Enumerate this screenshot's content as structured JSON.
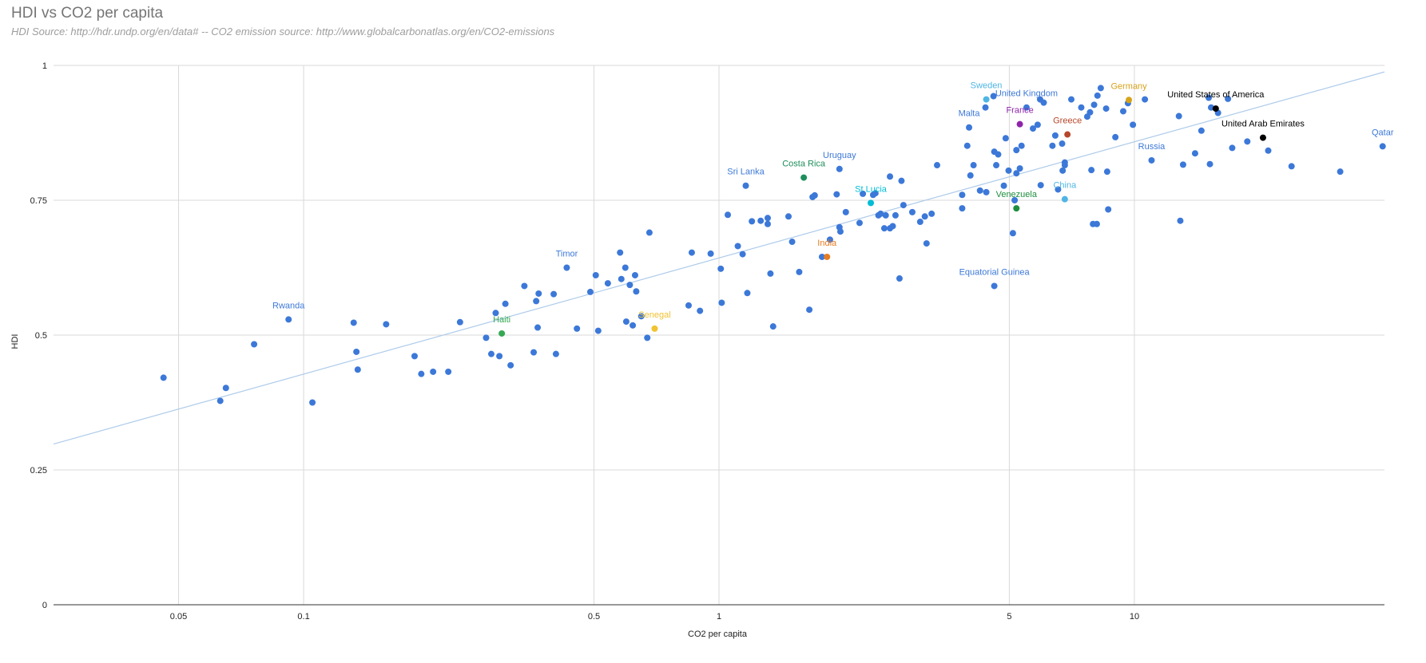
{
  "chart_data": {
    "type": "scatter",
    "title": "HDI vs CO2 per capita",
    "subtitle": "HDI Source: http://hdr.undp.org/en/data# -- CO2 emission source: http://www.globalcarbonatlas.org/en/CO2-emissions",
    "xlabel": "CO2 per capita",
    "ylabel": "HDI",
    "x_scale": "log",
    "xlim": [
      0.025,
      40
    ],
    "ylim": [
      0,
      1
    ],
    "x_ticks": [
      0.05,
      0.1,
      0.5,
      1,
      5,
      10
    ],
    "x_tick_labels": [
      "0.05",
      "0.1",
      "0.5",
      "1",
      "5",
      "10"
    ],
    "y_ticks": [
      0,
      0.25,
      0.5,
      0.75,
      1
    ],
    "y_tick_labels": [
      "0",
      "0.25",
      "0.5",
      "0.75",
      "1"
    ],
    "grid": true,
    "legend": "none",
    "trendline": {
      "color": "#aecbea",
      "from": [
        0.025,
        0.298
      ],
      "to": [
        40,
        0.988
      ]
    },
    "default_color": "#3c78d8",
    "labeled_points": [
      {
        "label": "Rwanda",
        "x": 0.092,
        "y": 0.529,
        "color": "#3c78d8",
        "label_color": "#3c78d8"
      },
      {
        "label": "Haiti",
        "x": 0.3,
        "y": 0.503,
        "color": "#34a853",
        "label_color": "#34a853"
      },
      {
        "label": "Timor",
        "x": 0.43,
        "y": 0.625,
        "color": "#3c78d8",
        "label_color": "#3c78d8"
      },
      {
        "label": "Senegal",
        "x": 0.7,
        "y": 0.512,
        "color": "#f1c232",
        "label_color": "#f1c232"
      },
      {
        "label": "Sri Lanka",
        "x": 1.16,
        "y": 0.777,
        "color": "#3c78d8",
        "label_color": "#3c78d8"
      },
      {
        "label": "Costa Rica",
        "x": 1.6,
        "y": 0.792,
        "color": "#1e8e5b",
        "label_color": "#1e8e5b"
      },
      {
        "label": "Uruguay",
        "x": 1.95,
        "y": 0.808,
        "color": "#3c78d8",
        "label_color": "#3c78d8"
      },
      {
        "label": "India",
        "x": 1.82,
        "y": 0.645,
        "color": "#e67c22",
        "label_color": "#e67c22"
      },
      {
        "label": "St Lucia",
        "x": 2.32,
        "y": 0.745,
        "color": "#00bcd4",
        "label_color": "#00bcd4"
      },
      {
        "label": "Malta",
        "x": 4.0,
        "y": 0.885,
        "color": "#3c78d8",
        "label_color": "#3c78d8"
      },
      {
        "label": "Sweden",
        "x": 4.4,
        "y": 0.937,
        "color": "#4fb5e3",
        "label_color": "#4fb5e3"
      },
      {
        "label": "United Kingdom",
        "x": 5.5,
        "y": 0.922,
        "color": "#3c78d8",
        "label_color": "#3c78d8"
      },
      {
        "label": "France",
        "x": 5.3,
        "y": 0.891,
        "color": "#8e24aa",
        "label_color": "#8e24aa"
      },
      {
        "label": "Greece",
        "x": 6.9,
        "y": 0.872,
        "color": "#b7472a",
        "label_color": "#b7472a"
      },
      {
        "label": "Germany",
        "x": 9.7,
        "y": 0.936,
        "color": "#d6a21b",
        "label_color": "#d6a21b"
      },
      {
        "label": "Venezuela",
        "x": 5.2,
        "y": 0.735,
        "color": "#1e8e3e",
        "label_color": "#1e8e3e"
      },
      {
        "label": "China",
        "x": 6.8,
        "y": 0.752,
        "color": "#4fb5e3",
        "label_color": "#4fb5e3"
      },
      {
        "label": "Equatorial Guinea",
        "x": 4.6,
        "y": 0.591,
        "color": "#3c78d8",
        "label_color": "#3c78d8"
      },
      {
        "label": "Russia",
        "x": 11.0,
        "y": 0.824,
        "color": "#3c78d8",
        "label_color": "#3c78d8"
      },
      {
        "label": "United States of America",
        "x": 15.7,
        "y": 0.92,
        "color": "#000000",
        "label_color": "#000000"
      },
      {
        "label": "United Arab Emirates",
        "x": 20.4,
        "y": 0.866,
        "color": "#000000",
        "label_color": "#000000"
      },
      {
        "label": "Qatar",
        "x": 39.6,
        "y": 0.85,
        "color": "#3c78d8",
        "label_color": "#3c78d8"
      }
    ],
    "points": [
      [
        0.046,
        0.421
      ],
      [
        0.063,
        0.378
      ],
      [
        0.065,
        0.402
      ],
      [
        0.076,
        0.483
      ],
      [
        0.105,
        0.375
      ],
      [
        0.132,
        0.523
      ],
      [
        0.134,
        0.469
      ],
      [
        0.135,
        0.436
      ],
      [
        0.158,
        0.52
      ],
      [
        0.185,
        0.461
      ],
      [
        0.192,
        0.428
      ],
      [
        0.205,
        0.432
      ],
      [
        0.223,
        0.432
      ],
      [
        0.238,
        0.524
      ],
      [
        0.275,
        0.495
      ],
      [
        0.283,
        0.465
      ],
      [
        0.29,
        0.541
      ],
      [
        0.296,
        0.461
      ],
      [
        0.306,
        0.558
      ],
      [
        0.315,
        0.444
      ],
      [
        0.34,
        0.591
      ],
      [
        0.358,
        0.468
      ],
      [
        0.363,
        0.563
      ],
      [
        0.366,
        0.514
      ],
      [
        0.368,
        0.577
      ],
      [
        0.4,
        0.576
      ],
      [
        0.405,
        0.465
      ],
      [
        0.455,
        0.512
      ],
      [
        0.49,
        0.58
      ],
      [
        0.505,
        0.611
      ],
      [
        0.512,
        0.508
      ],
      [
        0.54,
        0.596
      ],
      [
        0.578,
        0.653
      ],
      [
        0.582,
        0.604
      ],
      [
        0.595,
        0.625
      ],
      [
        0.598,
        0.525
      ],
      [
        0.61,
        0.593
      ],
      [
        0.62,
        0.518
      ],
      [
        0.628,
        0.611
      ],
      [
        0.632,
        0.581
      ],
      [
        0.65,
        0.535
      ],
      [
        0.672,
        0.495
      ],
      [
        0.68,
        0.69
      ],
      [
        0.845,
        0.555
      ],
      [
        0.86,
        0.653
      ],
      [
        0.9,
        0.545
      ],
      [
        0.955,
        0.651
      ],
      [
        1.01,
        0.623
      ],
      [
        1.015,
        0.56
      ],
      [
        1.05,
        0.723
      ],
      [
        1.11,
        0.665
      ],
      [
        1.14,
        0.65
      ],
      [
        1.17,
        0.578
      ],
      [
        1.2,
        0.711
      ],
      [
        1.26,
        0.712
      ],
      [
        1.31,
        0.706
      ],
      [
        1.31,
        0.717
      ],
      [
        1.33,
        0.614
      ],
      [
        1.35,
        0.516
      ],
      [
        1.47,
        0.72
      ],
      [
        1.5,
        0.673
      ],
      [
        1.56,
        0.617
      ],
      [
        1.65,
        0.547
      ],
      [
        1.68,
        0.756
      ],
      [
        1.7,
        0.759
      ],
      [
        1.77,
        0.645
      ],
      [
        1.85,
        0.677
      ],
      [
        1.92,
        0.761
      ],
      [
        1.95,
        0.7
      ],
      [
        1.96,
        0.692
      ],
      [
        2.02,
        0.728
      ],
      [
        2.18,
        0.708
      ],
      [
        2.22,
        0.762
      ],
      [
        2.35,
        0.76
      ],
      [
        2.38,
        0.763
      ],
      [
        2.42,
        0.722
      ],
      [
        2.45,
        0.725
      ],
      [
        2.5,
        0.698
      ],
      [
        2.52,
        0.722
      ],
      [
        2.58,
        0.698
      ],
      [
        2.58,
        0.794
      ],
      [
        2.62,
        0.702
      ],
      [
        2.66,
        0.722
      ],
      [
        2.75,
        0.786
      ],
      [
        2.78,
        0.741
      ],
      [
        2.72,
        0.605
      ],
      [
        2.92,
        0.728
      ],
      [
        3.05,
        0.71
      ],
      [
        3.13,
        0.72
      ],
      [
        3.16,
        0.67
      ],
      [
        3.25,
        0.725
      ],
      [
        3.35,
        0.815
      ],
      [
        3.85,
        0.76
      ],
      [
        3.85,
        0.735
      ],
      [
        3.96,
        0.851
      ],
      [
        4.03,
        0.796
      ],
      [
        4.1,
        0.815
      ],
      [
        4.25,
        0.768
      ],
      [
        4.4,
        0.765
      ],
      [
        4.38,
        0.922
      ],
      [
        4.58,
        0.943
      ],
      [
        4.6,
        0.84
      ],
      [
        4.65,
        0.815
      ],
      [
        4.7,
        0.835
      ],
      [
        4.85,
        0.777
      ],
      [
        4.9,
        0.865
      ],
      [
        4.98,
        0.805
      ],
      [
        5.1,
        0.689
      ],
      [
        5.15,
        0.75
      ],
      [
        5.2,
        0.843
      ],
      [
        5.2,
        0.8
      ],
      [
        5.3,
        0.809
      ],
      [
        5.35,
        0.851
      ],
      [
        5.7,
        0.883
      ],
      [
        5.85,
        0.89
      ],
      [
        5.95,
        0.778
      ],
      [
        5.93,
        0.937
      ],
      [
        6.05,
        0.931
      ],
      [
        6.35,
        0.851
      ],
      [
        6.45,
        0.87
      ],
      [
        6.55,
        0.77
      ],
      [
        6.7,
        0.855
      ],
      [
        6.72,
        0.805
      ],
      [
        6.8,
        0.82
      ],
      [
        6.8,
        0.815
      ],
      [
        7.05,
        0.937
      ],
      [
        7.45,
        0.922
      ],
      [
        7.7,
        0.905
      ],
      [
        7.82,
        0.913
      ],
      [
        7.88,
        0.806
      ],
      [
        7.95,
        0.706
      ],
      [
        8.12,
        0.706
      ],
      [
        8.0,
        0.927
      ],
      [
        8.15,
        0.944
      ],
      [
        8.3,
        0.958
      ],
      [
        8.55,
        0.92
      ],
      [
        8.6,
        0.803
      ],
      [
        8.65,
        0.733
      ],
      [
        9.0,
        0.867
      ],
      [
        9.4,
        0.915
      ],
      [
        9.65,
        0.93
      ],
      [
        9.92,
        0.89
      ],
      [
        10.6,
        0.937
      ],
      [
        12.8,
        0.906
      ],
      [
        12.9,
        0.712
      ],
      [
        13.1,
        0.816
      ],
      [
        14.0,
        0.837
      ],
      [
        14.5,
        0.879
      ],
      [
        15.1,
        0.94
      ],
      [
        15.2,
        0.817
      ],
      [
        15.3,
        0.922
      ],
      [
        15.9,
        0.912
      ],
      [
        16.8,
        0.938
      ],
      [
        17.2,
        0.847
      ],
      [
        18.7,
        0.859
      ],
      [
        21.0,
        0.842
      ],
      [
        23.9,
        0.813
      ],
      [
        31.3,
        0.803
      ]
    ]
  }
}
